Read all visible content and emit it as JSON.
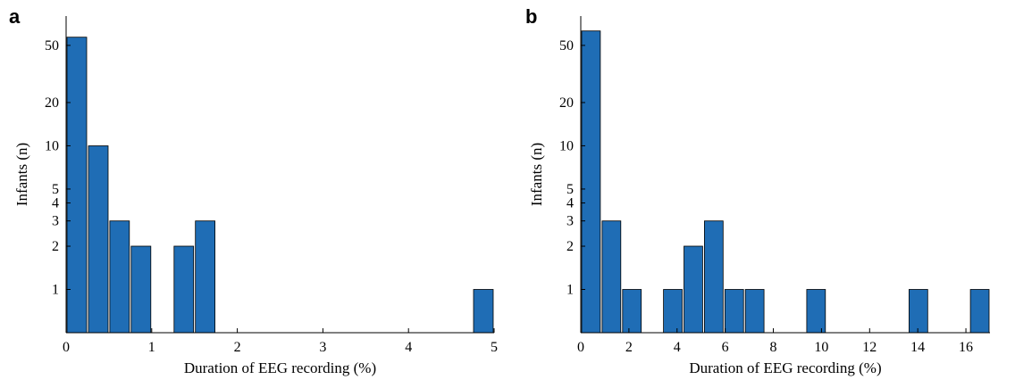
{
  "chart_data": [
    {
      "panel": "a",
      "type": "bar",
      "xlabel": "Duration of EEG recording (%)",
      "ylabel": "Infants (n)",
      "xlim": [
        0,
        5
      ],
      "y_scale": "log",
      "ylim": [
        0.5,
        80
      ],
      "x_ticks": [
        0,
        1,
        2,
        3,
        4,
        5
      ],
      "y_ticks": [
        1,
        2,
        3,
        4,
        5,
        10,
        20,
        50
      ],
      "bar_color": "#1f6db5",
      "bins": [
        {
          "x0": 0,
          "x1": 0.25,
          "value": 57
        },
        {
          "x0": 0.25,
          "x1": 0.5,
          "value": 10
        },
        {
          "x0": 0.5,
          "x1": 0.75,
          "value": 3
        },
        {
          "x0": 0.75,
          "x1": 1.0,
          "value": 2
        },
        {
          "x0": 1.25,
          "x1": 1.5,
          "value": 2
        },
        {
          "x0": 1.5,
          "x1": 1.75,
          "value": 3
        },
        {
          "x0": 4.75,
          "x1": 5.0,
          "value": 1
        }
      ]
    },
    {
      "panel": "b",
      "type": "bar",
      "xlabel": "Duration of EEG recording (%)",
      "ylabel": "Infants (n)",
      "xlim": [
        0,
        17
      ],
      "y_scale": "log",
      "ylim": [
        0.5,
        80
      ],
      "x_ticks": [
        0,
        2,
        4,
        6,
        8,
        10,
        12,
        14,
        16
      ],
      "y_ticks": [
        1,
        2,
        3,
        4,
        5,
        10,
        20,
        50
      ],
      "bar_color": "#1f6db5",
      "bins": [
        {
          "x0": 0,
          "x1": 0.85,
          "value": 63
        },
        {
          "x0": 0.85,
          "x1": 1.7,
          "value": 3
        },
        {
          "x0": 1.7,
          "x1": 2.55,
          "value": 1
        },
        {
          "x0": 3.4,
          "x1": 4.25,
          "value": 1
        },
        {
          "x0": 4.25,
          "x1": 5.1,
          "value": 2
        },
        {
          "x0": 5.1,
          "x1": 5.95,
          "value": 3
        },
        {
          "x0": 5.95,
          "x1": 6.8,
          "value": 1
        },
        {
          "x0": 6.8,
          "x1": 7.65,
          "value": 1
        },
        {
          "x0": 9.35,
          "x1": 10.2,
          "value": 1
        },
        {
          "x0": 13.6,
          "x1": 14.45,
          "value": 1
        },
        {
          "x0": 16.15,
          "x1": 17.0,
          "value": 1
        }
      ]
    }
  ]
}
